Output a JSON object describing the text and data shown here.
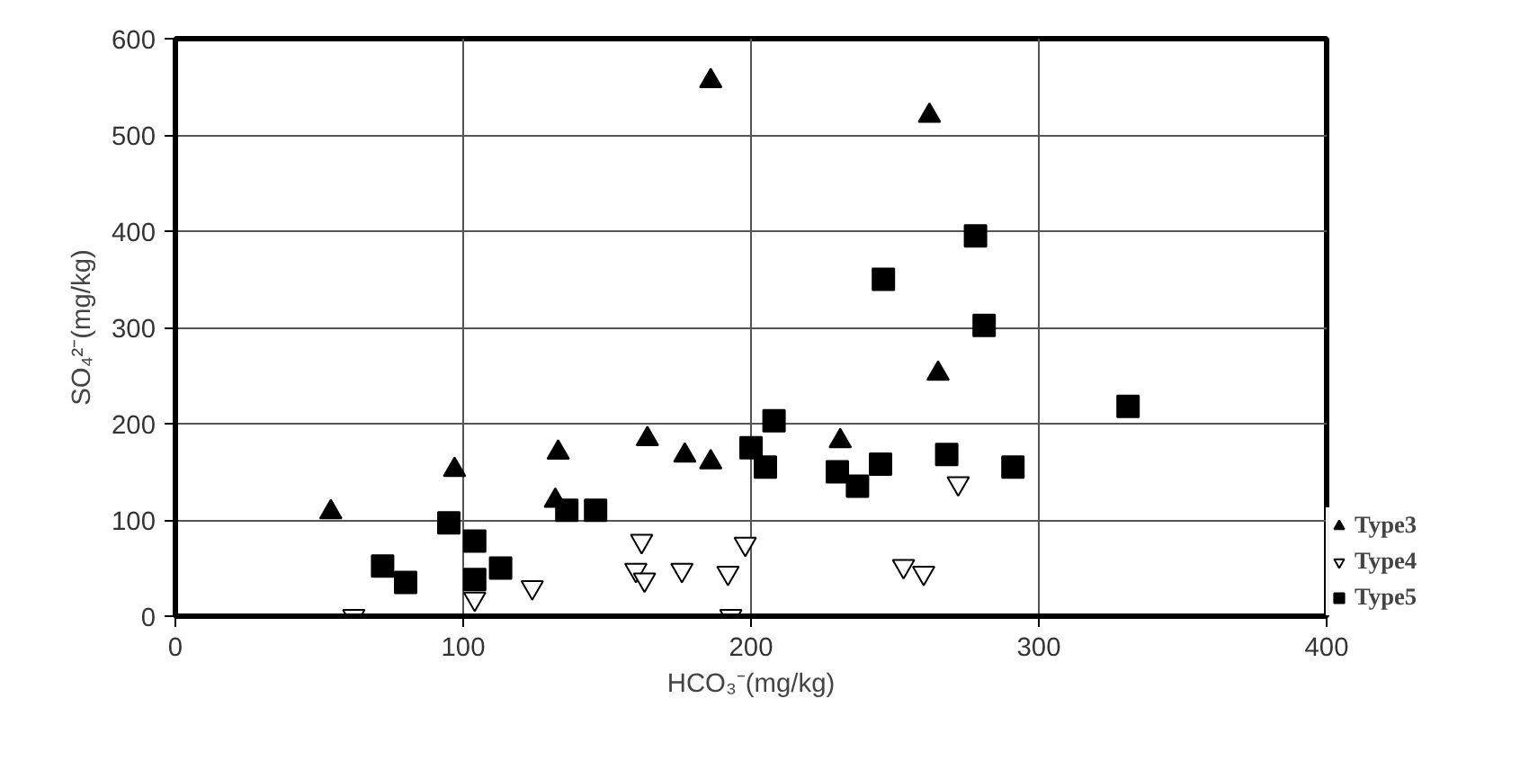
{
  "chart_data": {
    "type": "scatter",
    "xlabel": "HCO₃⁻(mg/kg)",
    "ylabel": "SO₄²⁻(mg/kg)",
    "xlim": [
      0,
      400
    ],
    "ylim": [
      0,
      600
    ],
    "xticks": [
      0,
      100,
      200,
      300,
      400
    ],
    "yticks": [
      0,
      100,
      200,
      300,
      400,
      500,
      600
    ],
    "grid": true,
    "legend": "right",
    "series": [
      {
        "name": "Type3",
        "color": "#000000",
        "marker": "triangle",
        "x": [
          54,
          97,
          133,
          132,
          164,
          177,
          186,
          186,
          231,
          262,
          265
        ],
        "values": [
          108,
          152,
          170,
          120,
          184,
          167,
          160,
          556,
          182,
          520,
          252
        ]
      },
      {
        "name": "Type4",
        "color": "#ffffff",
        "marker": "triangle",
        "x": [
          62,
          104,
          124,
          160,
          162,
          163,
          176,
          192,
          193,
          198,
          253,
          260,
          272
        ],
        "values": [
          0,
          18,
          30,
          48,
          78,
          38,
          48,
          45,
          0,
          75,
          52,
          45,
          138
        ]
      },
      {
        "name": "Type5",
        "color": "#000000",
        "marker": "square",
        "x": [
          72,
          80,
          95,
          104,
          104,
          113,
          136,
          146,
          200,
          205,
          208,
          230,
          237,
          245,
          246,
          268,
          278,
          281,
          291,
          331
        ],
        "values": [
          52,
          35,
          97,
          78,
          38,
          50,
          110,
          110,
          175,
          155,
          203,
          150,
          135,
          158,
          350,
          168,
          395,
          302,
          155,
          218
        ]
      }
    ]
  }
}
